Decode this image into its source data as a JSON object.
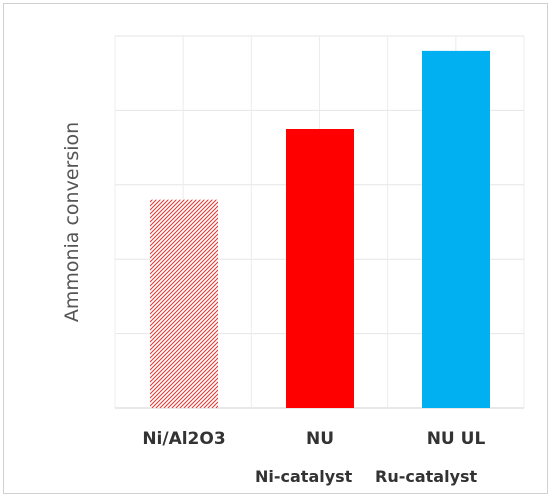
{
  "chart_data": {
    "type": "bar",
    "categories": [
      "Ni/Al2O3",
      "NU",
      "NU UL"
    ],
    "values": [
      2.8,
      3.75,
      4.8
    ],
    "ylim": [
      0,
      5
    ],
    "ylabel": "Ammonia conversion",
    "xlabel": "",
    "title": "",
    "grid": true,
    "legend": "none",
    "bar_styles": [
      "hatched",
      "solid",
      "solid"
    ],
    "colors": [
      "#e8342f",
      "#ff0000",
      "#00b0f0"
    ],
    "category_groups": [
      "Ni-catalyst",
      "Ru-catalyst"
    ]
  }
}
